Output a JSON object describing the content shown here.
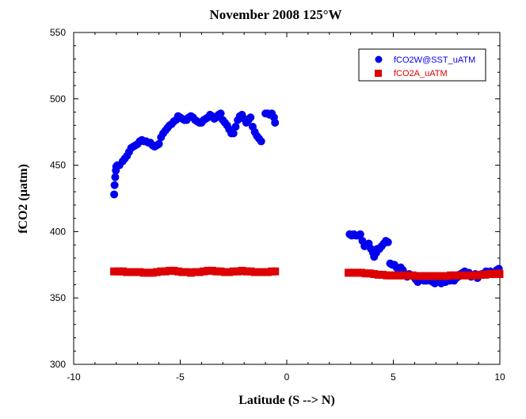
{
  "chart_data": {
    "type": "scatter",
    "title": "November 2008 125°W",
    "xlabel": "Latitude (S --> N)",
    "ylabel": "fCO2 (µatm)",
    "xlim": [
      -10,
      10
    ],
    "ylim": [
      300,
      550
    ],
    "xticks": [
      -10,
      -5,
      0,
      5,
      10
    ],
    "yticks": [
      300,
      350,
      400,
      450,
      500,
      550
    ],
    "grid": false,
    "legend_position": "top-right",
    "series": [
      {
        "name": "fCO2W@SST_uATM",
        "marker": "circle",
        "color": "#0000ee",
        "points": [
          [
            -8.1,
            428
          ],
          [
            -8.08,
            435
          ],
          [
            -8.05,
            441
          ],
          [
            -8.02,
            446
          ],
          [
            -8.0,
            449
          ],
          [
            -7.95,
            450
          ],
          [
            -7.85,
            450
          ],
          [
            -7.7,
            453
          ],
          [
            -7.6,
            455
          ],
          [
            -7.5,
            457
          ],
          [
            -7.4,
            460
          ],
          [
            -7.3,
            463
          ],
          [
            -7.2,
            464
          ],
          [
            -7.1,
            465
          ],
          [
            -7.0,
            466
          ],
          [
            -6.9,
            468
          ],
          [
            -6.8,
            469
          ],
          [
            -6.7,
            468
          ],
          [
            -6.6,
            468
          ],
          [
            -6.5,
            467
          ],
          [
            -6.4,
            467
          ],
          [
            -6.3,
            465
          ],
          [
            -6.2,
            464
          ],
          [
            -6.1,
            465
          ],
          [
            -6.0,
            466
          ],
          [
            -5.9,
            471
          ],
          [
            -5.8,
            474
          ],
          [
            -5.7,
            476
          ],
          [
            -5.6,
            478
          ],
          [
            -5.5,
            480
          ],
          [
            -5.4,
            481
          ],
          [
            -5.3,
            483
          ],
          [
            -5.2,
            484
          ],
          [
            -5.1,
            487
          ],
          [
            -5.0,
            486
          ],
          [
            -4.9,
            485
          ],
          [
            -4.8,
            484
          ],
          [
            -4.7,
            484
          ],
          [
            -4.6,
            486
          ],
          [
            -4.5,
            487
          ],
          [
            -4.4,
            486
          ],
          [
            -4.3,
            484
          ],
          [
            -4.2,
            483
          ],
          [
            -4.1,
            482
          ],
          [
            -4.0,
            482
          ],
          [
            -3.9,
            484
          ],
          [
            -3.8,
            485
          ],
          [
            -3.7,
            486
          ],
          [
            -3.6,
            488
          ],
          [
            -3.5,
            487
          ],
          [
            -3.4,
            485
          ],
          [
            -3.3,
            486
          ],
          [
            -3.2,
            488
          ],
          [
            -3.1,
            489
          ],
          [
            -3.0,
            484
          ],
          [
            -2.9,
            482
          ],
          [
            -2.8,
            480
          ],
          [
            -2.7,
            477
          ],
          [
            -2.6,
            474
          ],
          [
            -2.5,
            474
          ],
          [
            -2.4,
            479
          ],
          [
            -2.3,
            484
          ],
          [
            -2.2,
            487
          ],
          [
            -2.1,
            488
          ],
          [
            -2.0,
            485
          ],
          [
            -1.9,
            482
          ],
          [
            -1.8,
            484
          ],
          [
            -1.7,
            486
          ],
          [
            -1.6,
            479
          ],
          [
            -1.5,
            475
          ],
          [
            -1.4,
            472
          ],
          [
            -1.3,
            470
          ],
          [
            -1.2,
            468
          ],
          [
            -1.0,
            489
          ],
          [
            -0.9,
            489
          ],
          [
            -0.8,
            488
          ],
          [
            -0.7,
            489
          ],
          [
            -0.6,
            486
          ],
          [
            -0.55,
            482
          ],
          [
            2.95,
            398
          ],
          [
            3.05,
            397
          ],
          [
            3.15,
            398
          ],
          [
            3.25,
            397
          ],
          [
            3.35,
            397
          ],
          [
            3.45,
            398
          ],
          [
            3.55,
            393
          ],
          [
            3.65,
            389
          ],
          [
            3.75,
            390
          ],
          [
            3.85,
            391
          ],
          [
            3.95,
            387
          ],
          [
            4.05,
            384
          ],
          [
            4.1,
            381
          ],
          [
            4.2,
            384
          ],
          [
            4.25,
            387
          ],
          [
            4.35,
            387
          ],
          [
            4.45,
            389
          ],
          [
            4.55,
            391
          ],
          [
            4.65,
            393
          ],
          [
            4.75,
            392
          ],
          [
            4.85,
            376
          ],
          [
            4.95,
            375
          ],
          [
            5.05,
            375
          ],
          [
            5.15,
            373
          ],
          [
            5.25,
            371
          ],
          [
            5.35,
            373
          ],
          [
            5.45,
            371
          ],
          [
            5.55,
            368
          ],
          [
            5.65,
            366
          ],
          [
            5.75,
            368
          ],
          [
            5.85,
            367
          ],
          [
            5.95,
            366
          ],
          [
            6.05,
            364
          ],
          [
            6.15,
            362
          ],
          [
            6.25,
            364
          ],
          [
            6.35,
            365
          ],
          [
            6.45,
            363
          ],
          [
            6.55,
            363
          ],
          [
            6.65,
            364
          ],
          [
            6.75,
            363
          ],
          [
            6.85,
            362
          ],
          [
            6.95,
            361
          ],
          [
            7.05,
            363
          ],
          [
            7.15,
            362
          ],
          [
            7.25,
            361
          ],
          [
            7.35,
            363
          ],
          [
            7.45,
            362
          ],
          [
            7.55,
            364
          ],
          [
            7.65,
            363
          ],
          [
            7.75,
            364
          ],
          [
            7.85,
            363
          ],
          [
            7.95,
            365
          ],
          [
            8.05,
            366
          ],
          [
            8.15,
            368
          ],
          [
            8.25,
            369
          ],
          [
            8.35,
            370
          ],
          [
            8.45,
            368
          ],
          [
            8.55,
            369
          ],
          [
            8.65,
            366
          ],
          [
            8.75,
            367
          ],
          [
            8.85,
            368
          ],
          [
            8.95,
            365
          ],
          [
            9.05,
            367
          ],
          [
            9.15,
            368
          ],
          [
            9.25,
            368
          ],
          [
            9.35,
            370
          ],
          [
            9.45,
            369
          ],
          [
            9.55,
            370
          ],
          [
            9.65,
            368
          ],
          [
            9.75,
            369
          ],
          [
            9.85,
            371
          ],
          [
            9.95,
            372
          ]
        ]
      },
      {
        "name": "fCO2A_uATM",
        "marker": "square",
        "color": "#dd0000",
        "points": [
          [
            -8.1,
            370
          ],
          [
            -7.9,
            370
          ],
          [
            -7.7,
            370
          ],
          [
            -7.5,
            369.5
          ],
          [
            -7.3,
            369.5
          ],
          [
            -7.1,
            369.5
          ],
          [
            -6.9,
            369.5
          ],
          [
            -6.7,
            369
          ],
          [
            -6.5,
            369
          ],
          [
            -6.3,
            369
          ],
          [
            -6.1,
            369.5
          ],
          [
            -5.9,
            370
          ],
          [
            -5.7,
            370
          ],
          [
            -5.5,
            370.5
          ],
          [
            -5.3,
            370.5
          ],
          [
            -5.1,
            370
          ],
          [
            -4.9,
            369.5
          ],
          [
            -4.7,
            369.5
          ],
          [
            -4.5,
            369
          ],
          [
            -4.3,
            369.5
          ],
          [
            -4.1,
            369.5
          ],
          [
            -3.9,
            370
          ],
          [
            -3.7,
            370.5
          ],
          [
            -3.5,
            370.5
          ],
          [
            -3.3,
            370
          ],
          [
            -3.1,
            370
          ],
          [
            -2.9,
            369.5
          ],
          [
            -2.7,
            369.5
          ],
          [
            -2.5,
            370
          ],
          [
            -2.3,
            370
          ],
          [
            -2.1,
            370.5
          ],
          [
            -1.9,
            370
          ],
          [
            -1.7,
            370
          ],
          [
            -1.5,
            369.5
          ],
          [
            -1.3,
            369.5
          ],
          [
            -1.1,
            369.5
          ],
          [
            -0.9,
            369.5
          ],
          [
            -0.7,
            370
          ],
          [
            -0.55,
            370
          ],
          [
            2.9,
            369
          ],
          [
            3.1,
            369
          ],
          [
            3.3,
            369
          ],
          [
            3.5,
            369
          ],
          [
            3.7,
            368.5
          ],
          [
            3.9,
            368.5
          ],
          [
            4.1,
            368
          ],
          [
            4.3,
            367.5
          ],
          [
            4.5,
            367.5
          ],
          [
            4.7,
            367
          ],
          [
            4.9,
            367
          ],
          [
            5.1,
            367
          ],
          [
            5.3,
            367
          ],
          [
            5.5,
            367
          ],
          [
            5.7,
            367
          ],
          [
            5.9,
            367
          ],
          [
            6.1,
            366.5
          ],
          [
            6.3,
            366.5
          ],
          [
            6.5,
            366.5
          ],
          [
            6.7,
            366.5
          ],
          [
            6.9,
            366.5
          ],
          [
            7.1,
            366.5
          ],
          [
            7.3,
            366.5
          ],
          [
            7.5,
            366.5
          ],
          [
            7.7,
            367
          ],
          [
            7.9,
            367
          ],
          [
            8.1,
            367
          ],
          [
            8.3,
            367
          ],
          [
            8.5,
            367
          ],
          [
            8.7,
            367
          ],
          [
            8.9,
            367
          ],
          [
            9.1,
            367.5
          ],
          [
            9.3,
            367.5
          ],
          [
            9.5,
            368
          ],
          [
            9.7,
            368
          ],
          [
            9.9,
            368.5
          ],
          [
            9.98,
            368
          ]
        ]
      }
    ]
  }
}
